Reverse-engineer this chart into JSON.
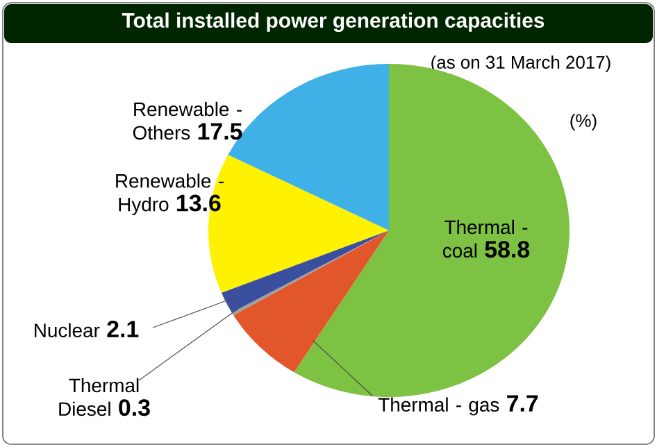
{
  "chart_data": {
    "type": "pie",
    "title": "Total installed power generation capacities",
    "subtitle": "(as on 31 March 2017)",
    "annotations": [
      "(%)"
    ],
    "categories": [
      "Thermal - coal",
      "Thermal - gas",
      "Thermal Diesel",
      "Nuclear",
      "Renewable - Hydro",
      "Renewable - Others"
    ],
    "values": [
      58.8,
      7.7,
      0.3,
      2.1,
      13.6,
      17.5
    ],
    "colors": [
      "#7dc242",
      "#e2562b",
      "#a0a0a0",
      "#3a4f9e",
      "#fff200",
      "#3fb1e6"
    ],
    "data_labels": true
  }
}
